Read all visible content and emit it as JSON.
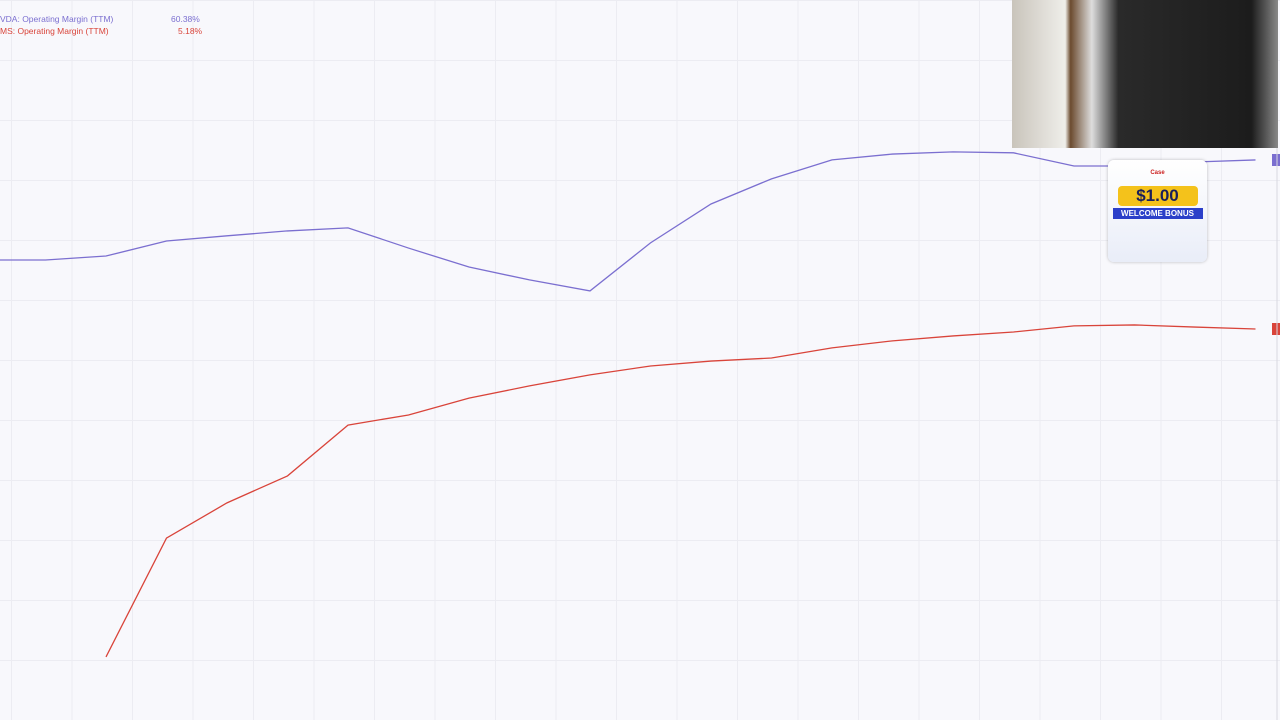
{
  "chart_data": {
    "type": "line",
    "categories": [
      null,
      null,
      null,
      null,
      null,
      null,
      null,
      null,
      null,
      null,
      null,
      null,
      null,
      null,
      null,
      null,
      null,
      null,
      null,
      null,
      null,
      null
    ],
    "ylim": [
      -122.5,
      112.6
    ],
    "series": [
      {
        "name": "VDA: Operating Margin (TTM)",
        "color": "#7b6fd0",
        "value_label": "60.38%",
        "values": [
          27.7,
          27.7,
          29.0,
          33.9,
          35.6,
          37.2,
          38.2,
          31.6,
          25.4,
          21.2,
          17.6,
          33.3,
          46.0,
          54.2,
          60.4,
          62.3,
          63.0,
          62.7,
          58.4,
          58.4,
          59.7,
          60.38
        ]
      },
      {
        "name": "MS: Operating Margin (TTM)",
        "color": "#d9443a",
        "value_label": "5.18%",
        "values": [
          null,
          null,
          -101.9,
          -63.1,
          -51.6,
          -42.8,
          -26.2,
          -22.9,
          -17.4,
          -13.4,
          -9.8,
          -6.9,
          -5.3,
          -4.3,
          -1.0,
          1.3,
          2.9,
          4.2,
          6.2,
          6.5,
          5.8,
          5.18
        ]
      }
    ]
  },
  "overlay": {
    "ad_brand": "Case",
    "ad_amount": "$1.00",
    "ad_text": "WELCOME BONUS"
  }
}
